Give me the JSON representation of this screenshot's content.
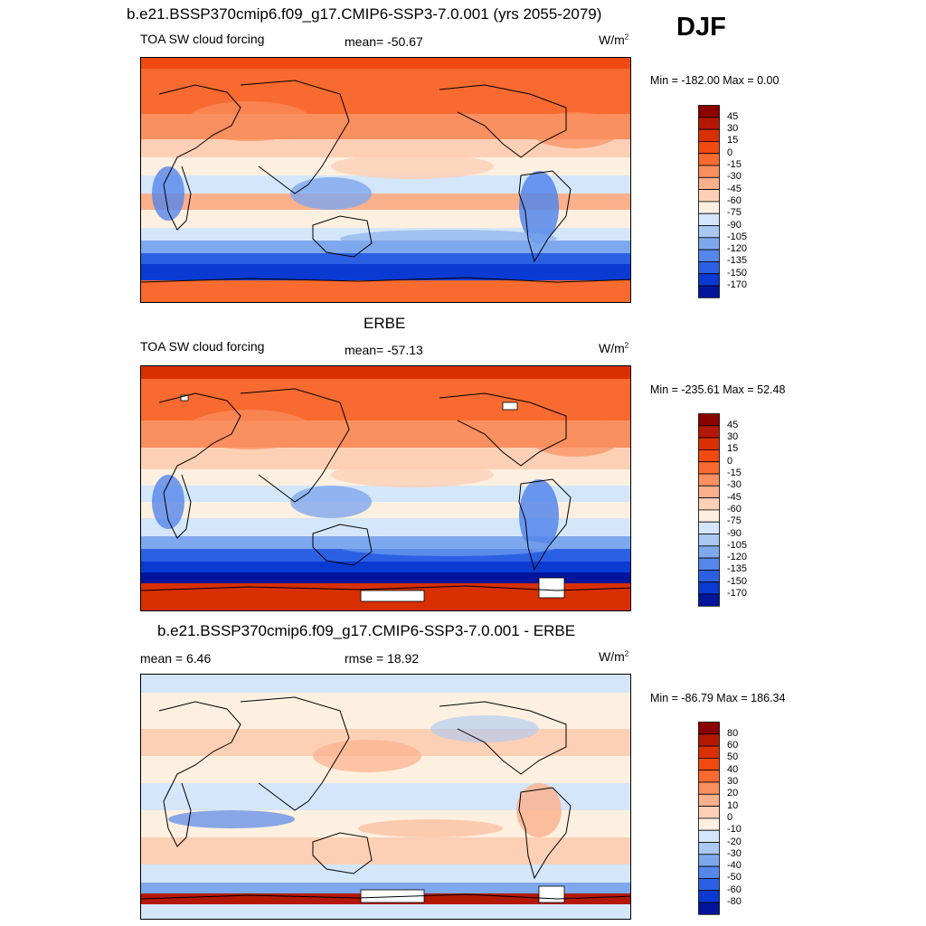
{
  "season": "DJF",
  "panels": [
    {
      "id": "model",
      "title": "b.e21.BSSP370cmip6.f09_g17.CMIP6-SSP3-7.0.001 (yrs 2055-2079)",
      "left_label": "TOA SW cloud forcing",
      "stat_label": "mean= -50.67",
      "units": "W/m",
      "units_sup": "2",
      "minmax": "Min = -182.00 Max =   0.00",
      "colorbar": {
        "labels": [
          "45",
          "30",
          "15",
          "0",
          "-15",
          "-30",
          "-45",
          "-60",
          "-75",
          "-90",
          "-105",
          "-120",
          "-135",
          "-150",
          "-170"
        ],
        "colors": [
          "#8c0000",
          "#b51800",
          "#d83000",
          "#f04a10",
          "#f86a30",
          "#fa8f60",
          "#fbb08c",
          "#fdd0b6",
          "#fdf0e0",
          "#d4e6fa",
          "#a9c8f4",
          "#7ea8ee",
          "#5586ea",
          "#2c60e4",
          "#0a3ad2",
          "#00159c"
        ]
      }
    },
    {
      "id": "obs",
      "title": "ERBE",
      "left_label": "TOA SW cloud forcing",
      "stat_label": "mean= -57.13",
      "units": "W/m",
      "units_sup": "2",
      "minmax": "Min = -235.61 Max =  52.48",
      "colorbar": {
        "labels": [
          "45",
          "30",
          "15",
          "0",
          "-15",
          "-30",
          "-45",
          "-60",
          "-75",
          "-90",
          "-105",
          "-120",
          "-135",
          "-150",
          "-170"
        ],
        "colors": [
          "#8c0000",
          "#b51800",
          "#d83000",
          "#f04a10",
          "#f86a30",
          "#fa8f60",
          "#fbb08c",
          "#fdd0b6",
          "#fdf0e0",
          "#d4e6fa",
          "#a9c8f4",
          "#7ea8ee",
          "#5586ea",
          "#2c60e4",
          "#0a3ad2",
          "#00159c"
        ]
      }
    },
    {
      "id": "diff",
      "title": "b.e21.BSSP370cmip6.f09_g17.CMIP6-SSP3-7.0.001 - ERBE",
      "left_label": "mean =   6.46",
      "stat_label": "rmse =  18.92",
      "units": "W/m",
      "units_sup": "2",
      "minmax": "Min = -86.79 Max = 186.34",
      "colorbar": {
        "labels": [
          "80",
          "60",
          "50",
          "40",
          "30",
          "20",
          "10",
          "0",
          "-10",
          "-20",
          "-30",
          "-40",
          "-50",
          "-60",
          "-80"
        ],
        "colors": [
          "#8c0000",
          "#b51800",
          "#d83000",
          "#f04a10",
          "#f86a30",
          "#fa8f60",
          "#fbb08c",
          "#fdd0b6",
          "#fdf0e0",
          "#d4e6fa",
          "#a9c8f4",
          "#7ea8ee",
          "#5586ea",
          "#2c60e4",
          "#0a3ad2",
          "#00159c"
        ]
      }
    }
  ]
}
